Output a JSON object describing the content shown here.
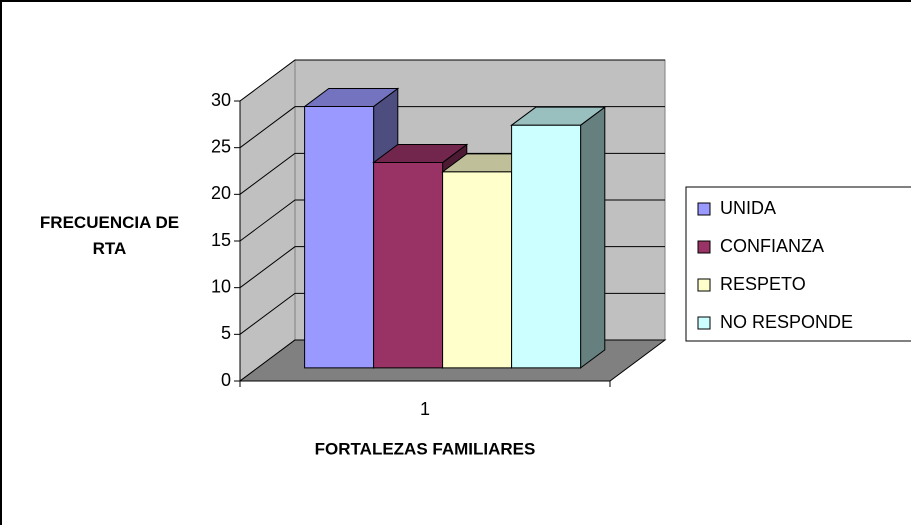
{
  "chart_data": {
    "type": "bar3d",
    "categories": [
      "1"
    ],
    "series": [
      {
        "name": "UNIDA",
        "color": "#9999ff",
        "values": [
          28
        ]
      },
      {
        "name": "CONFIANZA",
        "color": "#993366",
        "values": [
          22
        ]
      },
      {
        "name": "RESPETO",
        "color": "#ffffcc",
        "values": [
          21
        ]
      },
      {
        "name": "NO RESPONDE",
        "color": "#ccffff",
        "values": [
          26
        ]
      }
    ],
    "y_label": "FRECUENCIA DE RTA",
    "x_label": "FORTALEZAS FAMILIARES",
    "ylim": [
      0,
      30
    ],
    "yticks": [
      0,
      5,
      10,
      15,
      20,
      25,
      30
    ],
    "grid": true,
    "legend": "right"
  }
}
